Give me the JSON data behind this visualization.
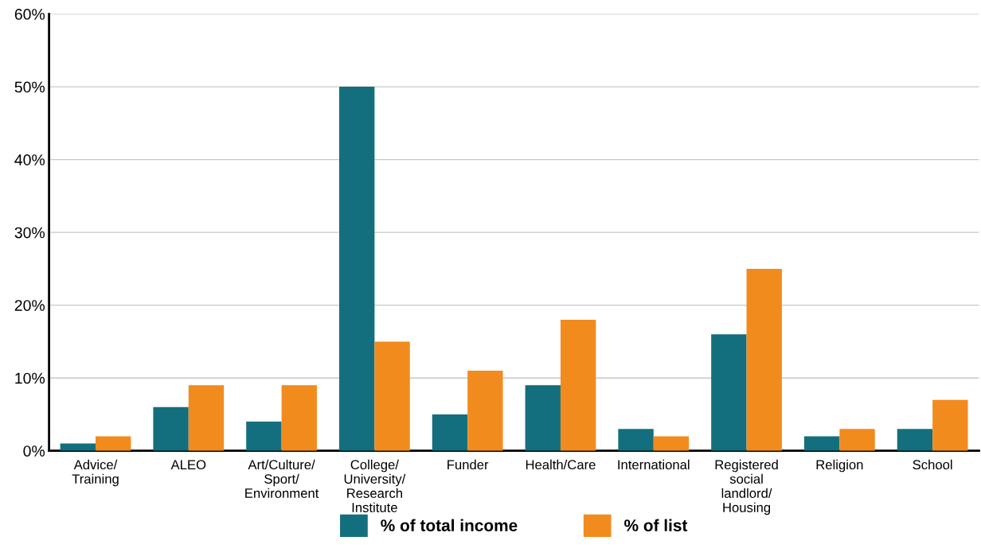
{
  "chart_data": {
    "type": "bar",
    "categories": [
      "Advice/\nTraining",
      "ALEO",
      "Art/Culture/\nSport/\nEnvironment",
      "College/\nUniversity/\nResearch\nInstitute",
      "Funder",
      "Health/Care",
      "International",
      "Registered\nsocial\nlandlord/\nHousing",
      "Religion",
      "School"
    ],
    "series": [
      {
        "name": "% of total income",
        "color": "#136f7d",
        "values": [
          1,
          6,
          4,
          50,
          5,
          9,
          3,
          16,
          2,
          3
        ]
      },
      {
        "name": "% of list",
        "color": "#f28b1e",
        "values": [
          2,
          9,
          9,
          15,
          11,
          18,
          2,
          25,
          3,
          7
        ]
      }
    ],
    "ylim": [
      0,
      60
    ],
    "yticks": [
      {
        "value": 0,
        "label": "0%"
      },
      {
        "value": 10,
        "label": "10%"
      },
      {
        "value": 20,
        "label": "20%"
      },
      {
        "value": 30,
        "label": "30%"
      },
      {
        "value": 40,
        "label": "40%"
      },
      {
        "value": 50,
        "label": "50%"
      },
      {
        "value": 60,
        "label": "60%"
      }
    ],
    "grid": "y",
    "legend": "bottom"
  }
}
